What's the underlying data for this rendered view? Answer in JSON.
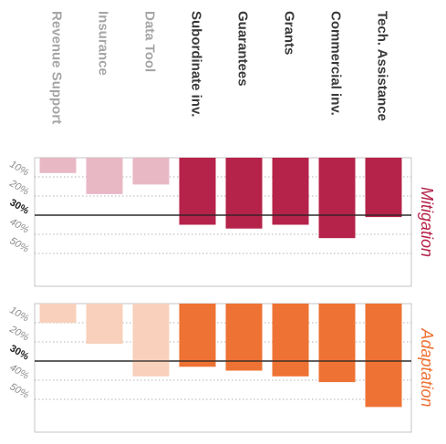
{
  "chart_data": {
    "type": "bar",
    "categories": [
      "Revenue Support",
      "Insurance",
      "Data Tool",
      "Subordinate inv.",
      "Guarantees",
      "Grants",
      "Commercial inv.",
      "Tech. Assistance"
    ],
    "tick_labels": [
      "10%",
      "20%",
      "30%",
      "40%",
      "50%"
    ],
    "threshold_label": "30%",
    "threshold": 30,
    "ylim": [
      0,
      55
    ],
    "series": [
      {
        "name": "Mitigation",
        "values": [
          8,
          19,
          14,
          35,
          37,
          35,
          42,
          31
        ],
        "color_strong": "#b5234a",
        "color_light": "#e8b8c5"
      },
      {
        "name": "Adaptation",
        "values": [
          10,
          21,
          38,
          33,
          35,
          38,
          41,
          54
        ],
        "color_strong": "#ee7233",
        "color_light": "#f8d0bb"
      }
    ],
    "highlighted": [
      false,
      false,
      false,
      true,
      true,
      true,
      true,
      true
    ],
    "grid": true
  }
}
